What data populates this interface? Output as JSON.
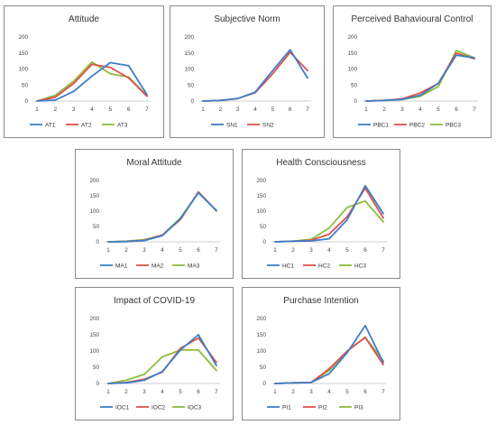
{
  "panels": [
    {
      "title": "Attitude",
      "series_names": [
        "AT1",
        "AT2",
        "AT3"
      ],
      "colors": [
        "#3d7ec9",
        "#e0504a",
        "#8fbc3d"
      ]
    },
    {
      "title": "Subjective Norm",
      "series_names": [
        "SN1",
        "SN2"
      ],
      "colors": [
        "#3d7ec9",
        "#e0504a"
      ]
    },
    {
      "title": "Perceived Bahavioural Control",
      "series_names": [
        "PBC1",
        "PBC2",
        "PBC3"
      ],
      "colors": [
        "#3d7ec9",
        "#e0504a",
        "#8fbc3d"
      ]
    },
    {
      "title": "Moral Attitude",
      "series_names": [
        "MA1",
        "MA2",
        "MA3"
      ],
      "colors": [
        "#3d7ec9",
        "#e0504a",
        "#8fbc3d"
      ]
    },
    {
      "title": "Health Consciousness",
      "series_names": [
        "HC1",
        "HC2",
        "HC3"
      ],
      "colors": [
        "#3d7ec9",
        "#e0504a",
        "#8fbc3d"
      ]
    },
    {
      "title": "Impact of COVID-19",
      "series_names": [
        "IOC1",
        "IOC2",
        "IOC3"
      ],
      "colors": [
        "#3d7ec9",
        "#e0504a",
        "#8fbc3d"
      ]
    },
    {
      "title": "Purchase Intention",
      "series_names": [
        "PI1",
        "PI2",
        "PI3"
      ],
      "colors": [
        "#3d7ec9",
        "#e0504a",
        "#8fbc3d"
      ]
    }
  ],
  "chart_data": [
    {
      "type": "line",
      "title": "Attitude",
      "x": [
        1,
        2,
        3,
        4,
        5,
        6,
        7
      ],
      "ylim": [
        0,
        200
      ],
      "yticks": [
        0,
        50,
        100,
        150,
        200
      ],
      "grid": false,
      "legend": "bottom",
      "series": [
        {
          "name": "AT1",
          "values": [
            0,
            3,
            30,
            78,
            120,
            110,
            20
          ]
        },
        {
          "name": "AT2",
          "values": [
            0,
            12,
            55,
            115,
            105,
            72,
            15
          ]
        },
        {
          "name": "AT3",
          "values": [
            0,
            18,
            62,
            122,
            85,
            75,
            17
          ]
        }
      ]
    },
    {
      "type": "line",
      "title": "Subjective Norm",
      "x": [
        1,
        2,
        3,
        4,
        5,
        6,
        7
      ],
      "ylim": [
        0,
        200
      ],
      "yticks": [
        0,
        50,
        100,
        150,
        200
      ],
      "grid": false,
      "legend": "bottom",
      "series": [
        {
          "name": "SN1",
          "values": [
            0,
            2,
            8,
            28,
            95,
            160,
            72
          ]
        },
        {
          "name": "SN2",
          "values": [
            0,
            2,
            8,
            26,
            85,
            152,
            95
          ]
        }
      ]
    },
    {
      "type": "line",
      "title": "Perceived Bahavioural Control",
      "x": [
        1,
        2,
        3,
        4,
        5,
        6,
        7
      ],
      "ylim": [
        0,
        200
      ],
      "yticks": [
        0,
        50,
        100,
        150,
        200
      ],
      "grid": false,
      "legend": "bottom",
      "series": [
        {
          "name": "PBC1",
          "values": [
            0,
            2,
            5,
            18,
            55,
            143,
            135
          ]
        },
        {
          "name": "PBC2",
          "values": [
            0,
            2,
            7,
            25,
            55,
            150,
            132
          ]
        },
        {
          "name": "PBC3",
          "values": [
            0,
            2,
            5,
            15,
            45,
            158,
            135
          ]
        }
      ]
    },
    {
      "type": "line",
      "title": "Moral Attitude",
      "x": [
        1,
        2,
        3,
        4,
        5,
        6,
        7
      ],
      "ylim": [
        0,
        200
      ],
      "yticks": [
        0,
        50,
        100,
        150,
        200
      ],
      "grid": false,
      "legend": "bottom",
      "series": [
        {
          "name": "MA1",
          "values": [
            0,
            1,
            4,
            20,
            75,
            160,
            102
          ]
        },
        {
          "name": "MA2",
          "values": [
            0,
            1,
            5,
            22,
            72,
            163,
            101
          ]
        },
        {
          "name": "MA3",
          "values": [
            0,
            2,
            7,
            22,
            78,
            160,
            102
          ]
        }
      ]
    },
    {
      "type": "line",
      "title": "Health Consciousness",
      "x": [
        1,
        2,
        3,
        4,
        5,
        6,
        7
      ],
      "ylim": [
        0,
        200
      ],
      "yticks": [
        0,
        50,
        100,
        150,
        200
      ],
      "grid": false,
      "legend": "bottom",
      "series": [
        {
          "name": "HC1",
          "values": [
            0,
            2,
            3,
            10,
            72,
            183,
            92
          ]
        },
        {
          "name": "HC2",
          "values": [
            0,
            2,
            5,
            25,
            82,
            175,
            78
          ]
        },
        {
          "name": "HC3",
          "values": [
            0,
            2,
            8,
            45,
            112,
            133,
            65
          ]
        }
      ]
    },
    {
      "type": "line",
      "title": "Impact of COVID-19",
      "x": [
        1,
        2,
        3,
        4,
        5,
        6,
        7
      ],
      "ylim": [
        0,
        200
      ],
      "yticks": [
        0,
        50,
        100,
        150,
        200
      ],
      "grid": false,
      "legend": "bottom",
      "series": [
        {
          "name": "IOC1",
          "values": [
            0,
            2,
            10,
            37,
            103,
            150,
            55
          ]
        },
        {
          "name": "IOC2",
          "values": [
            0,
            3,
            13,
            35,
            108,
            140,
            65
          ]
        },
        {
          "name": "IOC3",
          "values": [
            0,
            10,
            28,
            82,
            103,
            103,
            40
          ]
        }
      ]
    },
    {
      "type": "line",
      "title": "Purchase Intention",
      "x": [
        1,
        2,
        3,
        4,
        5,
        6,
        7
      ],
      "ylim": [
        0,
        200
      ],
      "yticks": [
        0,
        50,
        100,
        150,
        200
      ],
      "grid": false,
      "legend": "bottom",
      "series": [
        {
          "name": "PI1",
          "values": [
            0,
            2,
            3,
            30,
            95,
            178,
            65
          ]
        },
        {
          "name": "PI2",
          "values": [
            0,
            2,
            3,
            45,
            100,
            142,
            58
          ]
        },
        {
          "name": "PI3",
          "values": [
            0,
            2,
            3,
            40,
            100,
            142,
            70
          ]
        }
      ]
    }
  ]
}
